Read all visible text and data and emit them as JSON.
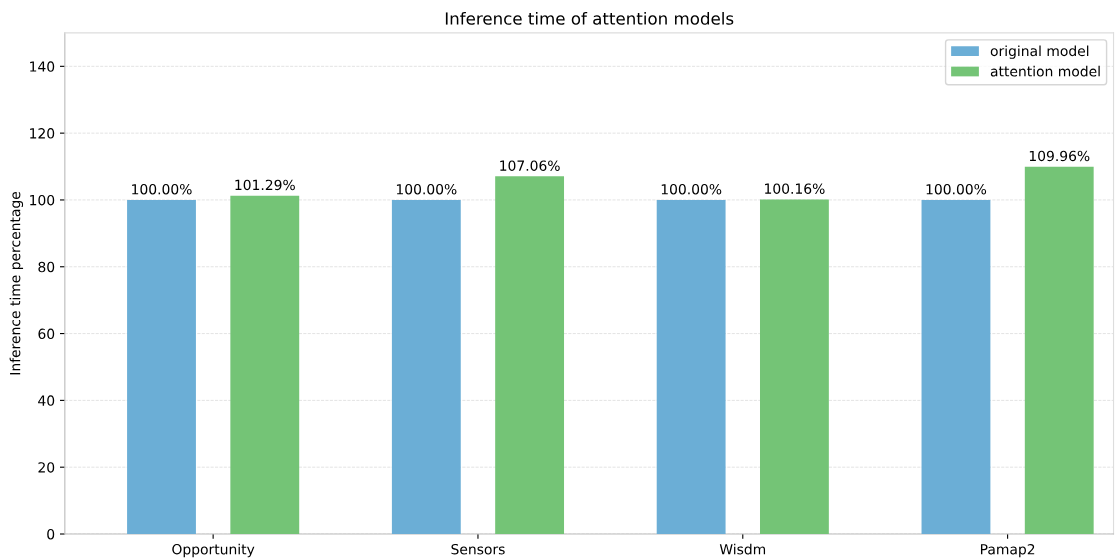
{
  "chart_data": {
    "type": "bar",
    "title": "Inference time of attention models",
    "ylabel": "Inference time percentage",
    "categories": [
      "Opportunity",
      "Sensors",
      "Wisdm",
      "Pamap2"
    ],
    "series": [
      {
        "name": "original model",
        "color": "#6baed6",
        "values": [
          100.0,
          100.0,
          100.0,
          100.0
        ],
        "value_labels": [
          "100.00%",
          "100.00%",
          "100.00%",
          "100.00%"
        ]
      },
      {
        "name": "attention model",
        "color": "#74c476",
        "values": [
          101.29,
          107.06,
          100.16,
          109.96
        ],
        "value_labels": [
          "101.29%",
          "107.06%",
          "100.16%",
          "109.96%"
        ]
      }
    ],
    "ylim": [
      0,
      150
    ],
    "yticks": [
      0,
      20,
      40,
      60,
      80,
      100,
      120,
      140
    ],
    "grid": "y",
    "legend": "top right"
  }
}
